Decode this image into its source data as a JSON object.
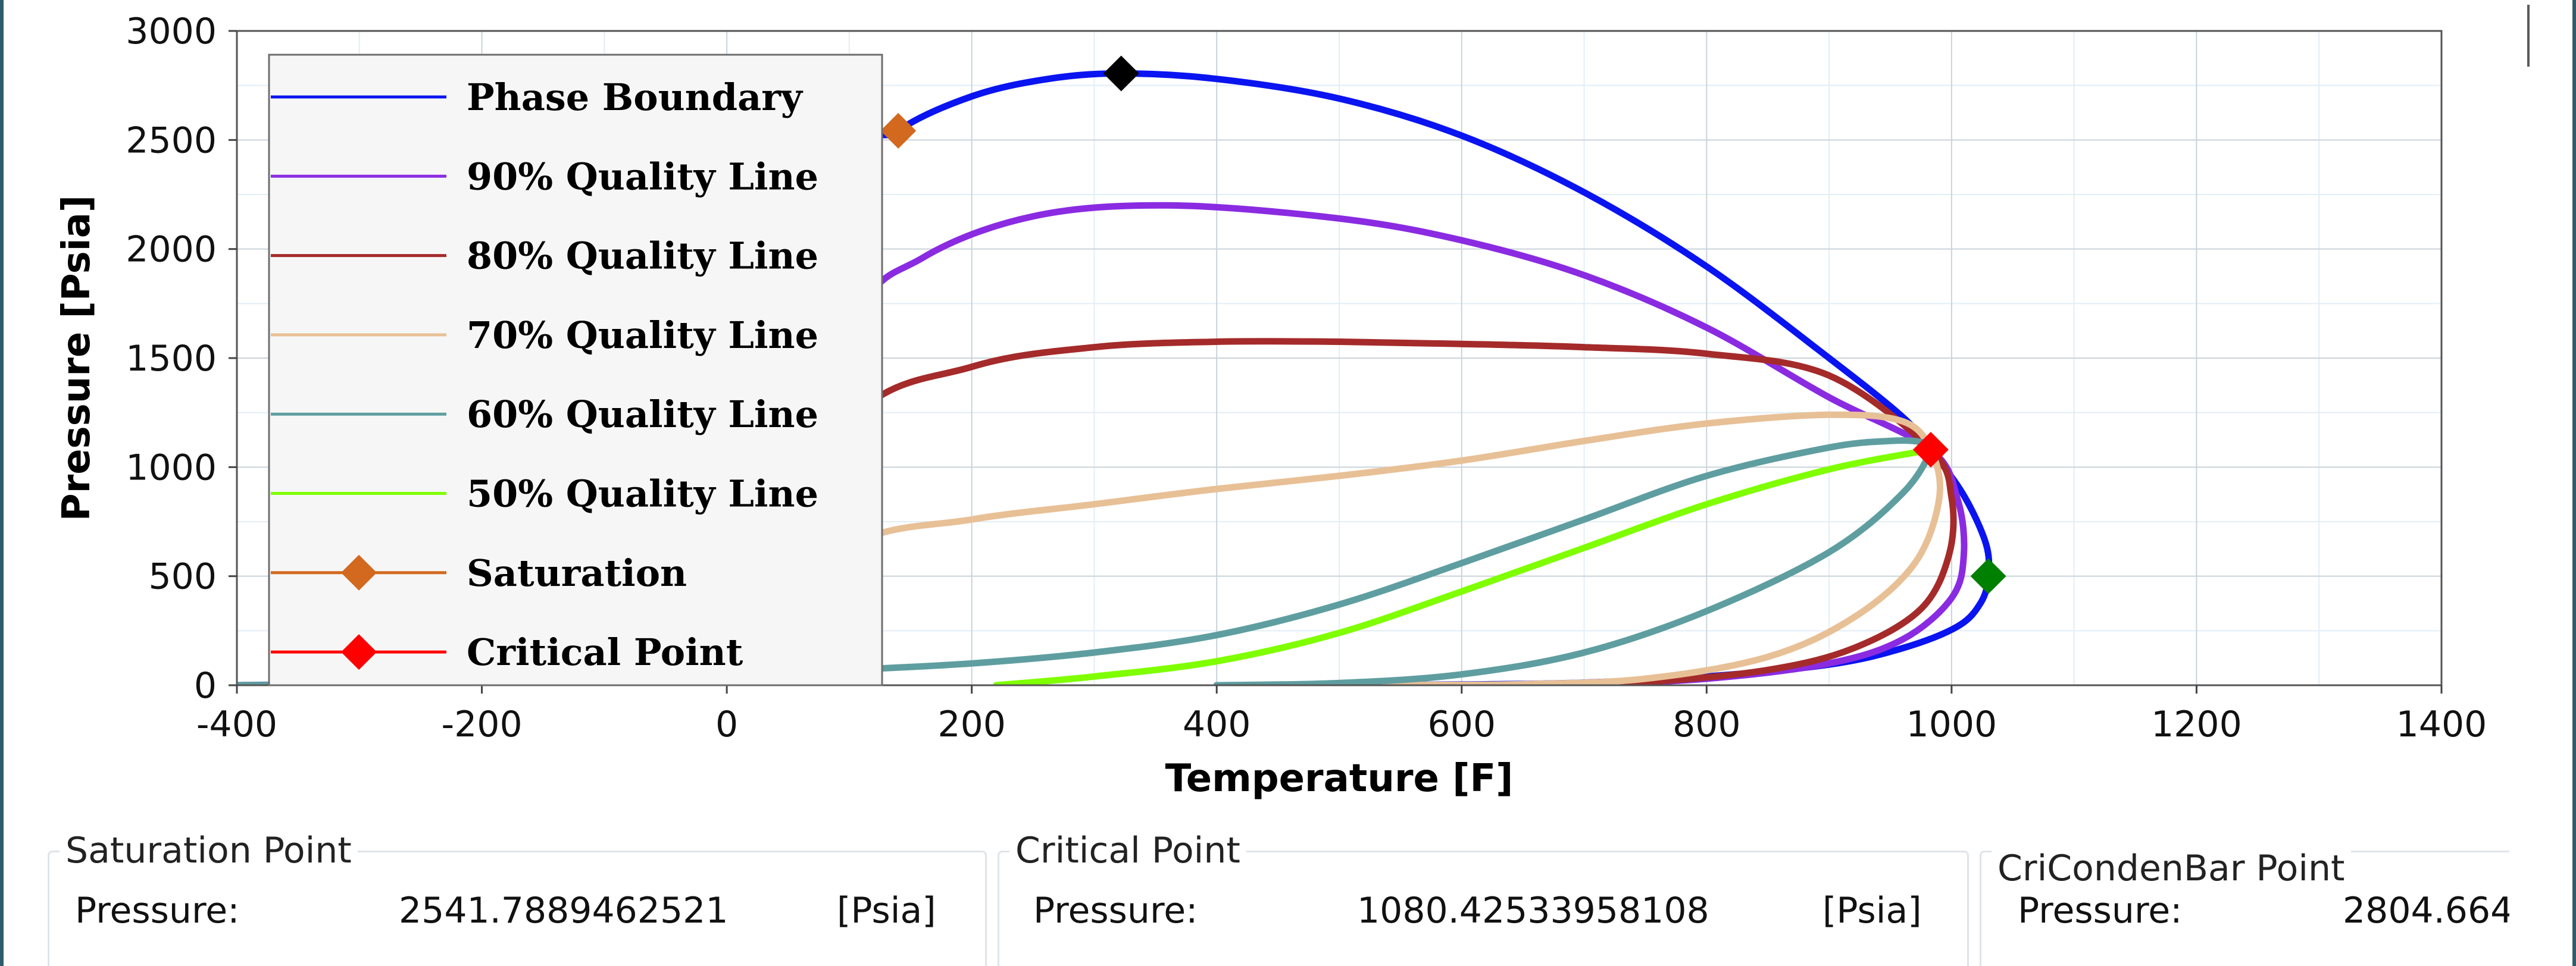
{
  "chart_data": {
    "type": "line",
    "xlabel": "Temperature [F]",
    "ylabel": "Pressure [Psia]",
    "xlim": [
      -400,
      1400
    ],
    "ylim": [
      0,
      3000
    ],
    "x_ticks": [
      -400,
      -200,
      0,
      200,
      400,
      600,
      800,
      1000,
      1200,
      1400
    ],
    "y_ticks": [
      0,
      500,
      1000,
      1500,
      2000,
      2500,
      3000
    ],
    "grid": true,
    "legend_position": "top-left",
    "series": [
      {
        "name": "Phase Boundary",
        "color": "#0a14f0",
        "x": [
          -400,
          -300,
          -200,
          -100,
          0,
          100,
          140,
          200,
          260,
          320,
          400,
          500,
          600,
          700,
          800,
          900,
          960,
          983,
          1010,
          1028,
          1030,
          1024,
          1005,
          960,
          900,
          800,
          700,
          600,
          500,
          400
        ],
        "y": [
          0,
          10,
          45,
          170,
          560,
          2300,
          2542,
          2700,
          2778,
          2805,
          2780,
          2690,
          2520,
          2260,
          1920,
          1500,
          1230,
          1080,
          870,
          650,
          500,
          380,
          270,
          170,
          95,
          40,
          12,
          3,
          0.5,
          0
        ]
      },
      {
        "name": "90% Quality Line",
        "color": "#8a2be2",
        "x": [
          -400,
          -200,
          0,
          100,
          160,
          250,
          360,
          500,
          600,
          700,
          800,
          900,
          983,
          1005,
          1010,
          1000,
          960,
          900,
          800,
          700,
          600,
          500
        ],
        "y": [
          0,
          30,
          400,
          1650,
          1960,
          2150,
          2200,
          2140,
          2040,
          1880,
          1640,
          1320,
          1080,
          850,
          600,
          400,
          210,
          100,
          30,
          7,
          1,
          0
        ]
      },
      {
        "name": "80% Quality Line",
        "color": "#a52a2a",
        "x": [
          -400,
          -200,
          0,
          100,
          200,
          300,
          400,
          500,
          600,
          700,
          800,
          900,
          983,
          1000,
          998,
          975,
          920,
          850,
          750,
          650,
          550
        ],
        "y": [
          0,
          20,
          250,
          1210,
          1460,
          1550,
          1575,
          1575,
          1565,
          1550,
          1520,
          1420,
          1080,
          860,
          600,
          350,
          170,
          70,
          15,
          3,
          0
        ]
      },
      {
        "name": "70% Quality Line",
        "color": "#e8c096",
        "x": [
          -400,
          -200,
          0,
          100,
          200,
          300,
          400,
          500,
          600,
          700,
          800,
          900,
          960,
          983,
          990,
          970,
          920,
          850,
          750,
          650,
          550,
          450
        ],
        "y": [
          0,
          15,
          160,
          640,
          760,
          830,
          900,
          960,
          1030,
          1120,
          1200,
          1240,
          1210,
          1080,
          860,
          560,
          310,
          130,
          30,
          5,
          1,
          0
        ]
      },
      {
        "name": "60% Quality Line",
        "color": "#5f9ea0",
        "x": [
          -400,
          -200,
          0,
          100,
          200,
          300,
          400,
          500,
          600,
          700,
          800,
          900,
          950,
          975,
          983,
          960,
          900,
          800,
          700,
          600,
          500,
          400
        ],
        "y": [
          0,
          10,
          40,
          70,
          100,
          150,
          230,
          370,
          560,
          760,
          960,
          1090,
          1120,
          1115,
          1080,
          880,
          610,
          340,
          150,
          50,
          10,
          0
        ]
      },
      {
        "name": "50% Quality Line",
        "color": "#7fff00",
        "x": [
          220,
          300,
          400,
          500,
          600,
          700,
          800,
          900,
          983
        ],
        "y": [
          0,
          40,
          110,
          240,
          430,
          630,
          830,
          990,
          1080
        ]
      }
    ],
    "markers": [
      {
        "name": "Saturation",
        "x": 140,
        "y": 2542,
        "color": "#d2691e"
      },
      {
        "name": "Critical Point",
        "x": 983,
        "y": 1080,
        "color": "#ff0000"
      },
      {
        "x": 322,
        "y": 2805,
        "color": "#000000"
      },
      {
        "x": 1030,
        "y": 500,
        "color": "#008000"
      }
    ]
  },
  "panels": {
    "saturation": {
      "title": "Saturation Point",
      "pressure_label": "Pressure:",
      "pressure_value": "2541.7889462521",
      "unit": "[Psia]"
    },
    "critical": {
      "title": "Critical Point",
      "pressure_label": "Pressure:",
      "pressure_value": "1080.42533958108",
      "unit": "[Psia]"
    },
    "cricondenbar": {
      "title": "CriCondenBar Point",
      "pressure_label": "Pressure:",
      "pressure_value": "2804.664"
    }
  }
}
